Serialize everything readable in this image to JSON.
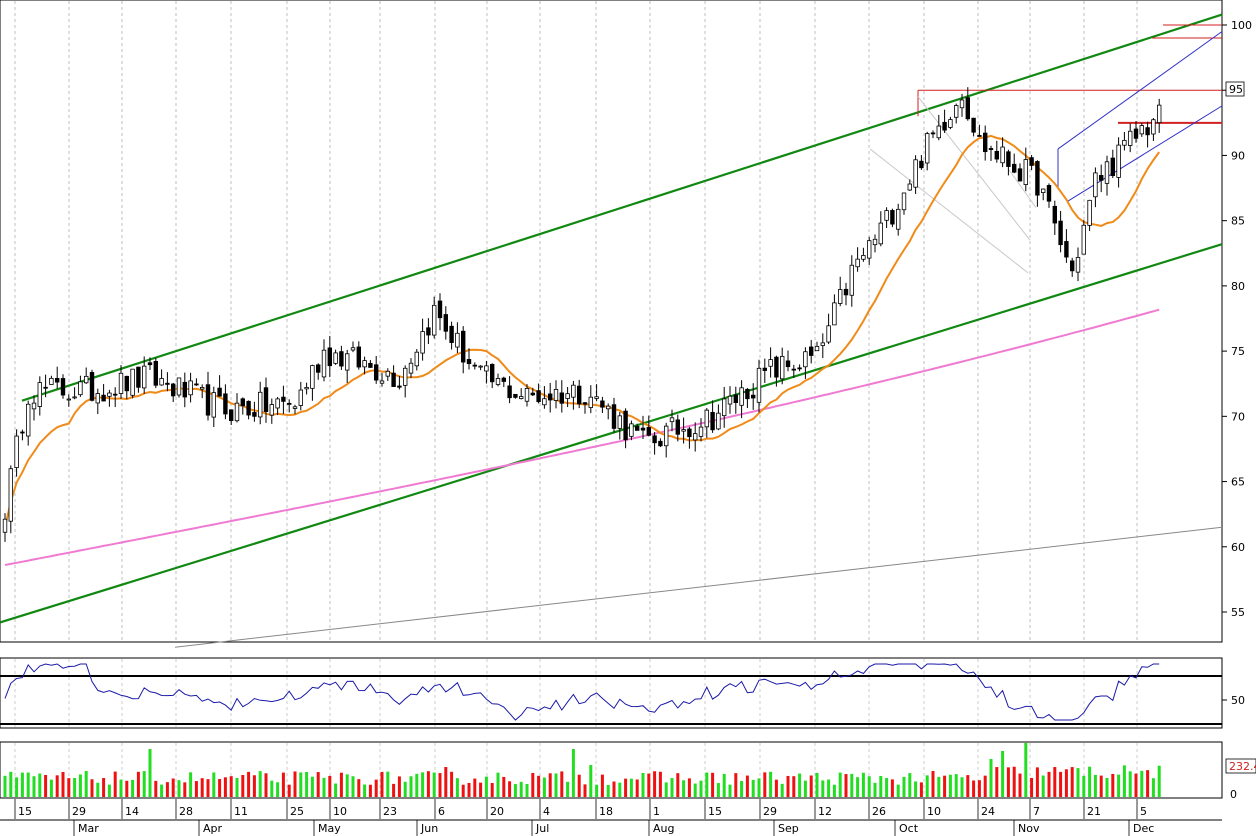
{
  "chart_data": {
    "type": "candlestick",
    "title": "",
    "price_axis": {
      "ticks": [
        55,
        60,
        65,
        70,
        75,
        80,
        85,
        90,
        95,
        100
      ],
      "range": [
        52,
        102
      ],
      "last_price_label": "95"
    },
    "rsi_axis": {
      "ticks": [
        50
      ],
      "range": [
        25,
        88
      ],
      "upper_band": 70,
      "lower_band": 30
    },
    "volume_axis": {
      "ticks": [
        "0"
      ],
      "last_volume_label": "232.4"
    },
    "date_ticks": [
      "15",
      "29",
      "14",
      "28",
      "11",
      "25",
      "10",
      "23",
      "6",
      "20",
      "4",
      "18",
      "1",
      "15",
      "29",
      "12",
      "26",
      "10",
      "24",
      "7",
      "21",
      "5"
    ],
    "month_labels": [
      "Mar",
      "Apr",
      "May",
      "Jun",
      "Jul",
      "Aug",
      "Sep",
      "Oct",
      "Nov",
      "Dec"
    ],
    "bars": 200,
    "price_path": [
      [
        0,
        63
      ],
      [
        4,
        72
      ],
      [
        15,
        72
      ],
      [
        25,
        73
      ],
      [
        38,
        70.5
      ],
      [
        50,
        71
      ],
      [
        55,
        75
      ],
      [
        62,
        74
      ],
      [
        68,
        73
      ],
      [
        74,
        78
      ],
      [
        82,
        73
      ],
      [
        90,
        71.5
      ],
      [
        100,
        72
      ],
      [
        110,
        68
      ],
      [
        122,
        70
      ],
      [
        132,
        73.5
      ],
      [
        140,
        74.5
      ],
      [
        146,
        81
      ],
      [
        152,
        85
      ],
      [
        158,
        90
      ],
      [
        165,
        95
      ],
      [
        168,
        91
      ],
      [
        178,
        88
      ],
      [
        184,
        81
      ],
      [
        188,
        88
      ],
      [
        196,
        92
      ],
      [
        205,
        95
      ]
    ],
    "moving_average_fast_color": "#f08a18",
    "moving_average_slow_color": "#f07ad2",
    "channel_color": "#118811",
    "resistance_color": "#d02020",
    "rsi_color": "#1a1aa8",
    "volume_up_color": "#22dd22",
    "volume_down_color": "#ee1111"
  }
}
